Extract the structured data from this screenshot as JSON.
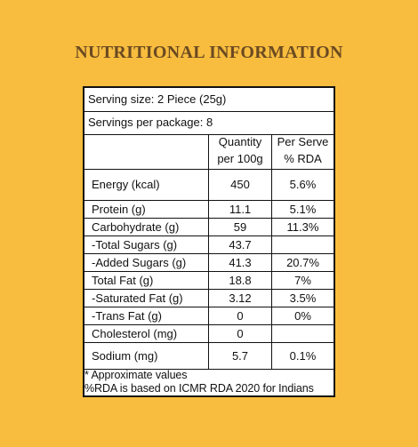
{
  "heading": "NUTRITIONAL INFORMATION",
  "serving_size": "Serving size: 2 Piece (25g)",
  "servings_per_package": "Servings per package: 8",
  "columns": {
    "quantity": [
      "Quantity",
      "per 100g"
    ],
    "rda": [
      "Per Serve",
      "% RDA"
    ]
  },
  "rows": [
    {
      "nutrient": "Energy (kcal)",
      "quantity": "450",
      "rda": "5.6%"
    },
    {
      "nutrient": "Protein (g)",
      "quantity": "11.1",
      "rda": "5.1%"
    },
    {
      "nutrient": "Carbohydrate (g)",
      "quantity": "59",
      "rda": "11.3%"
    },
    {
      "nutrient": "-Total Sugars (g)",
      "quantity": "43.7",
      "rda": ""
    },
    {
      "nutrient": "-Added Sugars (g)",
      "quantity": "41.3",
      "rda": "20.7%"
    },
    {
      "nutrient": "Total Fat (g)",
      "quantity": "18.8",
      "rda": "7%"
    },
    {
      "nutrient": "-Saturated Fat (g)",
      "quantity": "3.12",
      "rda": "3.5%"
    },
    {
      "nutrient": "-Trans Fat (g)",
      "quantity": "0",
      "rda": "0%"
    },
    {
      "nutrient": "Cholesterol (mg)",
      "quantity": "0",
      "rda": ""
    },
    {
      "nutrient": "Sodium (mg)",
      "quantity": "5.7",
      "rda": "0.1%"
    }
  ],
  "footnotes": [
    "* Approximate values",
    "%RDA is based on ICMR RDA 2020 for Indians"
  ],
  "colors": {
    "background": "#F8BD3E",
    "heading": "#6B4A22",
    "panel": "#FFFFFF",
    "rule": "#111111"
  }
}
